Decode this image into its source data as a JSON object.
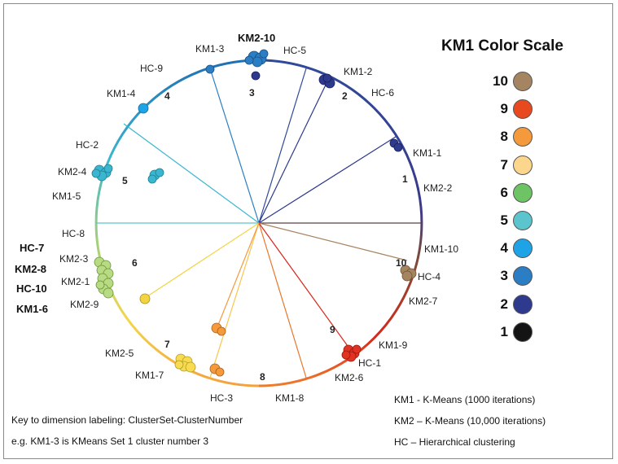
{
  "legend": {
    "title": "KM1 Color Scale",
    "items": [
      {
        "label": "10",
        "color": "#a58461"
      },
      {
        "label": "9",
        "color": "#e8491f"
      },
      {
        "label": "8",
        "color": "#f49a3c"
      },
      {
        "label": "7",
        "color": "#fbd68c"
      },
      {
        "label": "6",
        "color": "#6ec365"
      },
      {
        "label": "5",
        "color": "#5bc4cc"
      },
      {
        "label": "4",
        "color": "#1ea4e6"
      },
      {
        "label": "3",
        "color": "#2b7ec4"
      },
      {
        "label": "2",
        "color": "#2e3a8e"
      },
      {
        "label": "1",
        "color": "#141414"
      }
    ]
  },
  "notes": {
    "key_line1": "Key to dimension labeling: ClusterSet-ClusterNumber",
    "key_line2": "e.g. KM1-3 is KMeans Set 1 cluster number 3",
    "abbr_km1": "KM1 - K-Means (1000 iterations)",
    "abbr_km2": "KM2 – K-Means (10,000 iterations)",
    "abbr_hc": "HC – Hierarchical clustering"
  },
  "circle": {
    "dimension_labels": [
      "KM2-10",
      "KM1-3",
      "HC-5",
      "HC-9",
      "KM1-2",
      "HC-6",
      "KM1-4",
      "KM1-1",
      "HC-2",
      "KM2-4",
      "KM2-2",
      "KM1-5",
      "KM1-10",
      "HC-8",
      "HC-4",
      "KM2-3",
      "KM2-1",
      "KM2-7",
      "KM2-9",
      "KM1-9",
      "KM2-5",
      "HC-1",
      "KM1-7",
      "KM2-6",
      "HC-3",
      "KM1-8"
    ],
    "left_bold_labels": [
      "HC-7",
      "KM2-8",
      "HC-10",
      "KM1-6"
    ],
    "cluster_numbers": [
      "3",
      "2",
      "4",
      "1",
      "5",
      "6",
      "10",
      "7",
      "9",
      "8"
    ]
  }
}
